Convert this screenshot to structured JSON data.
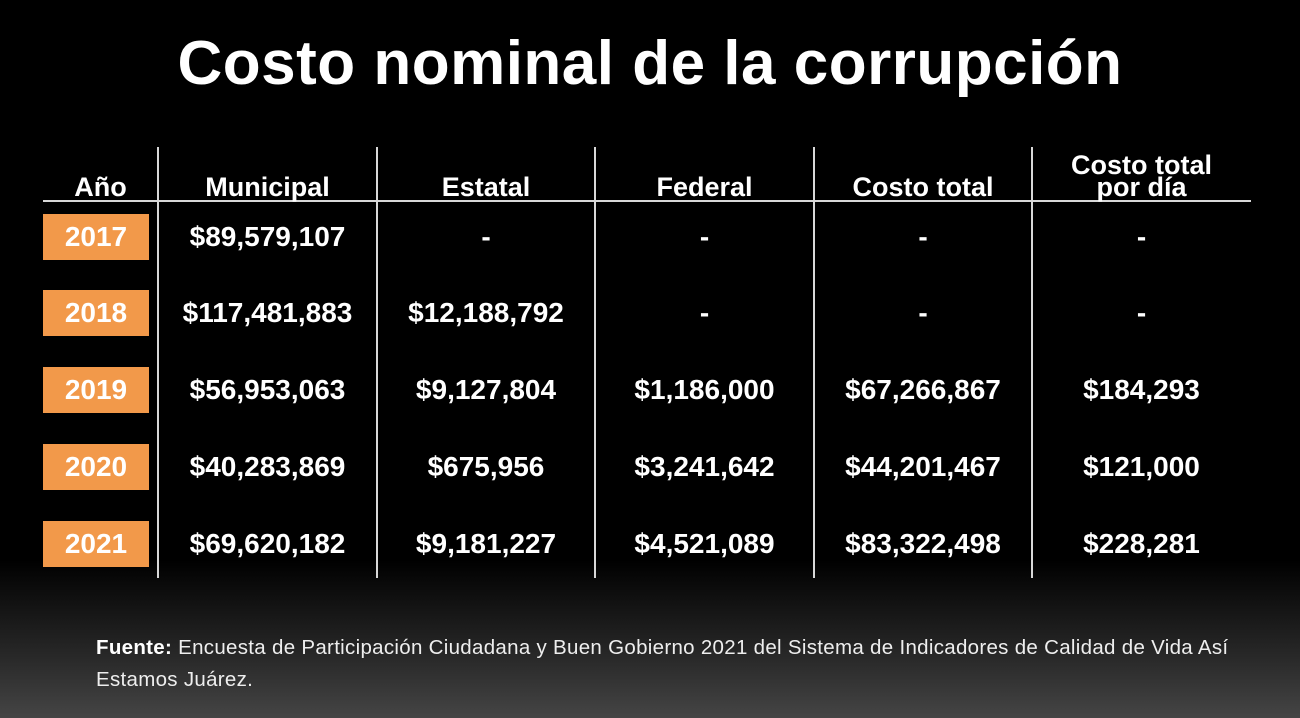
{
  "title": "Costo nominal de la corrupción",
  "chart_data": {
    "type": "table",
    "title": "Costo nominal de la corrupción",
    "columns": [
      "Año",
      "Municipal",
      "Estatal",
      "Federal",
      "Costo total",
      "Costo total por día"
    ],
    "header_lines": [
      [
        "Año"
      ],
      [
        "Municipal"
      ],
      [
        "Estatal"
      ],
      [
        "Federal"
      ],
      [
        "Costo total"
      ],
      [
        "Costo total",
        "por día"
      ]
    ],
    "rows": [
      [
        "2017",
        "$89,579,107",
        "-",
        "-",
        "-",
        "-"
      ],
      [
        "2018",
        "$117,481,883",
        "$12,188,792",
        "-",
        "-",
        "-"
      ],
      [
        "2019",
        "$56,953,063",
        "$9,127,804",
        "$1,186,000",
        "$67,266,867",
        "$184,293"
      ],
      [
        "2020",
        "$40,283,869",
        "$675,956",
        "$3,241,642",
        "$44,201,467",
        "$121,000"
      ],
      [
        "2021",
        "$69,620,182",
        "$9,181,227",
        "$4,521,089",
        "$83,322,498",
        "$228,281"
      ]
    ],
    "year_badge_color": "#f2994a"
  },
  "source": {
    "label": "Fuente:",
    "text": " Encuesta de Participación Ciudadana y Buen Gobierno 2021 del Sistema de Indicadores de Calidad de Vida Así Estamos Juárez."
  }
}
